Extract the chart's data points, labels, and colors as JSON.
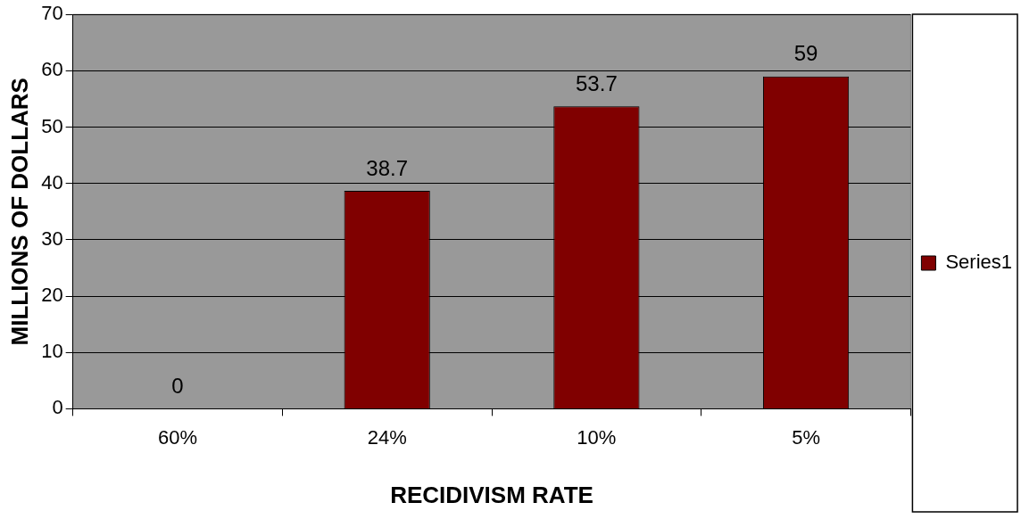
{
  "chart_data": {
    "type": "bar",
    "xlabel": "RECIDIVISM RATE",
    "ylabel": "MILLIONS OF DOLLARS",
    "categories": [
      "60%",
      "24%",
      "10%",
      "5%"
    ],
    "series": [
      {
        "name": "Series1",
        "color": "#800000",
        "values": [
          0,
          38.7,
          53.7,
          59
        ]
      }
    ],
    "ylim": [
      0,
      70
    ],
    "yticks": [
      0,
      10,
      20,
      30,
      40,
      50,
      60,
      70
    ],
    "grid": "y",
    "legend": "right",
    "data_labels": true
  }
}
